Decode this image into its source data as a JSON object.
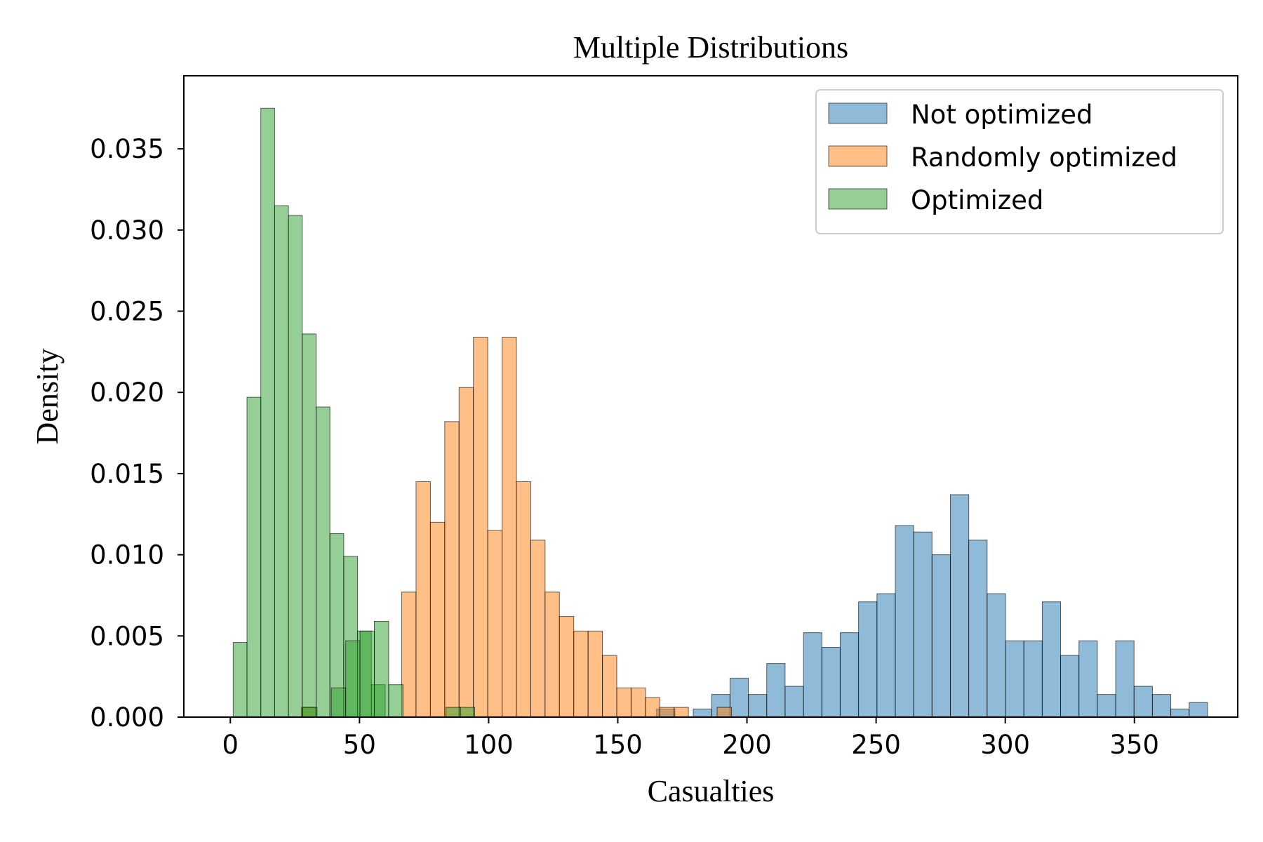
{
  "chart_data": {
    "type": "histogram",
    "title": "Multiple Distributions",
    "xlabel": "Casualties",
    "ylabel": "Density",
    "xlim": [
      -18,
      390
    ],
    "ylim": [
      0,
      0.0395
    ],
    "xticks": [
      0,
      50,
      100,
      150,
      200,
      250,
      300,
      350
    ],
    "xtick_labels": [
      "0",
      "50",
      "100",
      "150",
      "200",
      "250",
      "300",
      "350"
    ],
    "yticks": [
      0.0,
      0.005,
      0.01,
      0.015,
      0.02,
      0.025,
      0.03,
      0.035
    ],
    "ytick_labels": [
      "0.000",
      "0.005",
      "0.010",
      "0.015",
      "0.020",
      "0.025",
      "0.030",
      "0.035"
    ],
    "grid": false,
    "legend_position": "top-right",
    "series": [
      {
        "name": "Not optimized",
        "color": "#1f77b4",
        "alpha": 0.5,
        "bin_start": 165,
        "bin_width": 7.11,
        "values": [
          0.0005,
          0.0,
          0.0005,
          0.0014,
          0.0024,
          0.0014,
          0.0033,
          0.0019,
          0.0052,
          0.0043,
          0.0052,
          0.0071,
          0.0076,
          0.0118,
          0.0114,
          0.01,
          0.0137,
          0.0109,
          0.0076,
          0.0047,
          0.0047,
          0.0071,
          0.0038,
          0.0047,
          0.0014,
          0.0047,
          0.0019,
          0.0014,
          0.0005,
          0.0009
        ]
      },
      {
        "name": "Randomly optimized",
        "color": "#ff7f0e",
        "alpha": 0.5,
        "bin_start": 27.5,
        "bin_width": 5.55,
        "values": [
          0.0006,
          0.0,
          0.0,
          0.0,
          0.0,
          0.0,
          0.0,
          0.0077,
          0.0145,
          0.012,
          0.0182,
          0.0203,
          0.0234,
          0.0115,
          0.0234,
          0.0145,
          0.0109,
          0.0077,
          0.0062,
          0.0053,
          0.0053,
          0.0038,
          0.0018,
          0.0018,
          0.0012,
          0.0006,
          0.0006,
          0.0,
          0.0,
          0.0006
        ]
      },
      {
        "name": "Optimized",
        "color": "#2ca02c",
        "alpha": 0.5,
        "bin_start": 1.1,
        "bin_width": 5.35,
        "values": [
          0.0046,
          0.0197,
          0.0375,
          0.0315,
          0.0309,
          0.0236,
          0.0191,
          0.0113,
          0.0099,
          0.0053,
          0.002,
          0.0,
          0.0,
          0.0,
          0.0,
          0.0,
          0.0,
          0.0,
          0.0,
          0.0,
          0.0,
          0.0,
          0.0,
          0.0,
          0.0,
          0.0,
          0.0,
          0.0,
          0.0,
          0.0
        ]
      },
      {
        "name": "",
        "color": "#2ca02c",
        "alpha": 0.5,
        "bin_start": 28.0,
        "bin_width": 5.55,
        "values": [
          0.0006,
          0.0,
          0.0018,
          0.0047,
          0.0053,
          0.0059,
          0.002,
          0.0,
          0.0,
          0.0,
          0.0006,
          0.0006,
          0.0,
          0.0,
          0.0,
          0.0,
          0.0,
          0.0,
          0.0,
          0.0,
          0.0,
          0.0,
          0.0,
          0.0,
          0.0,
          0.0,
          0.0,
          0.0,
          0.0,
          0.0
        ]
      }
    ]
  }
}
